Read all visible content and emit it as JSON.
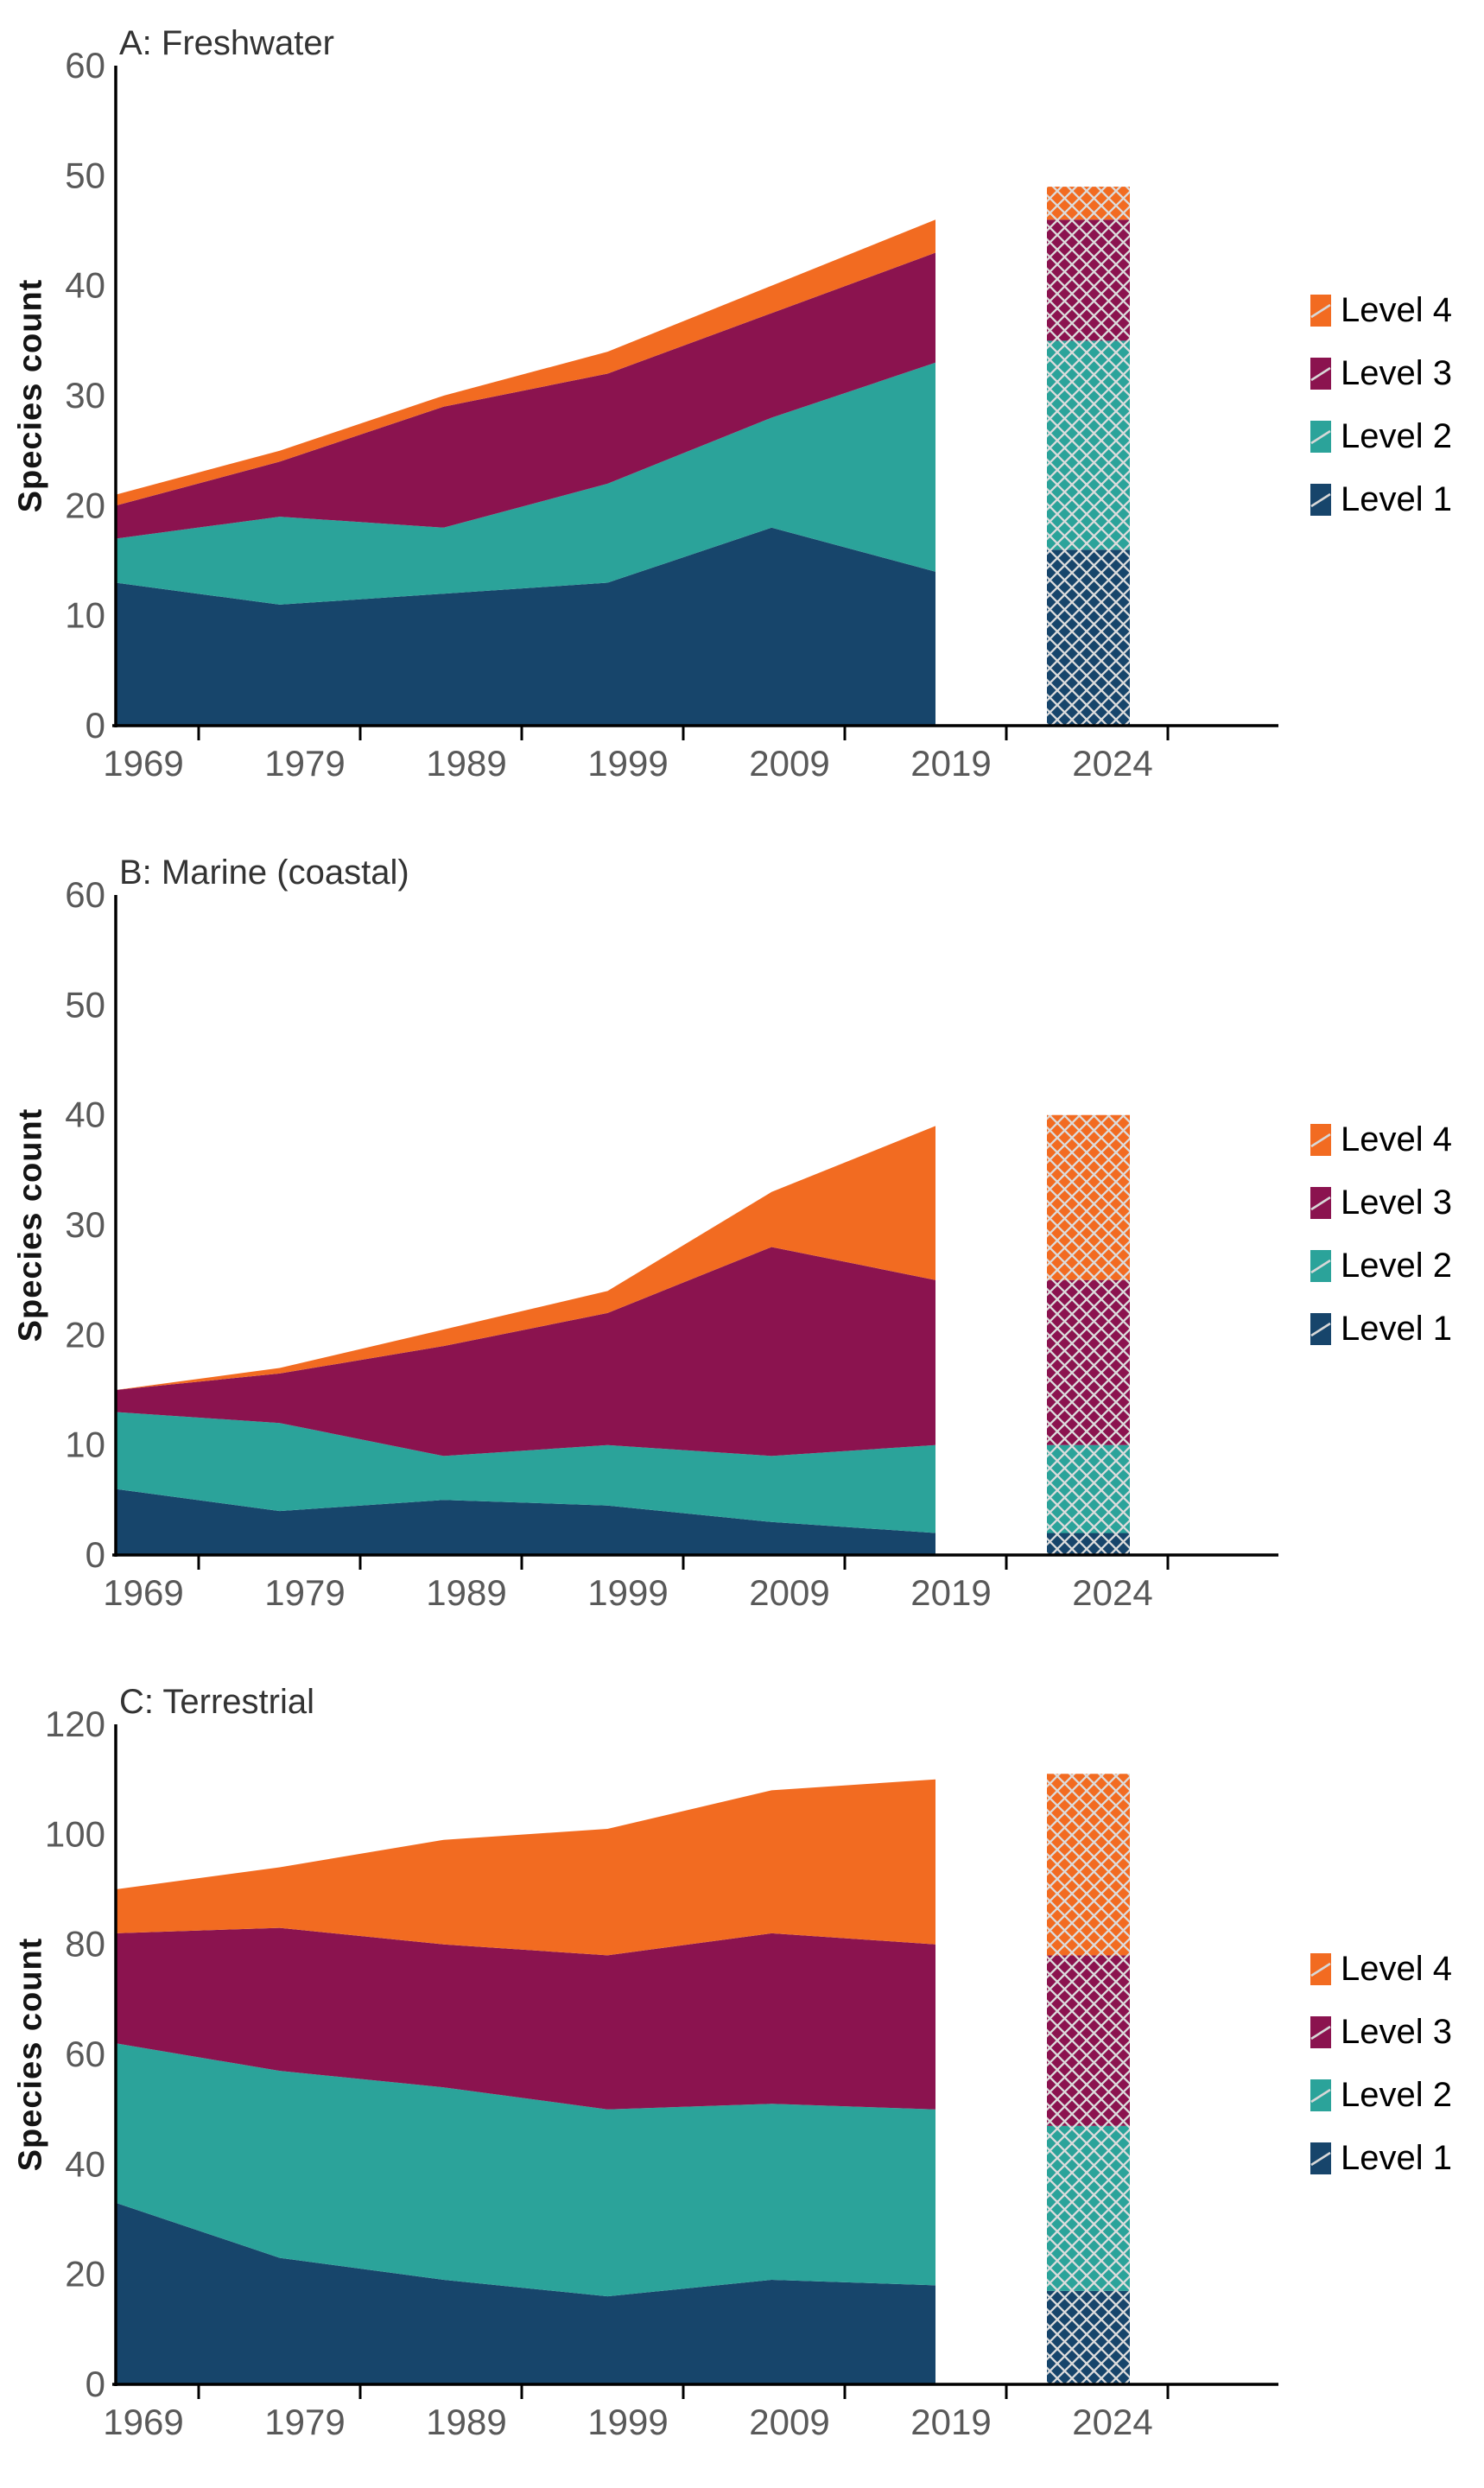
{
  "figure": {
    "background": "#ffffff"
  },
  "colors": {
    "level1": "#17456B",
    "level2": "#2BA39A",
    "level3": "#8B134F",
    "level4": "#F26B21",
    "hatch_line": "#DCDCDC",
    "axis": "#000000",
    "tick_label": "#595959",
    "title_text": "#333333",
    "ylabel_text": "#141414",
    "legend_text": "#000000"
  },
  "legend": {
    "position": "right",
    "items": [
      {
        "label": "Level 4",
        "color_key": "level4"
      },
      {
        "label": "Level 3",
        "color_key": "level3"
      },
      {
        "label": "Level 2",
        "color_key": "level2"
      },
      {
        "label": "Level 1",
        "color_key": "level1"
      }
    ]
  },
  "chart_data": [
    {
      "type": "area",
      "title": "A: Freshwater",
      "ylabel": "Species count",
      "ylim": [
        0,
        60
      ],
      "yticks": [
        0,
        10,
        20,
        30,
        40,
        50,
        60
      ],
      "xtick_labels": [
        "1969",
        "1979",
        "1989",
        "1999",
        "2009",
        "2019",
        "2024"
      ],
      "x": [
        1967,
        1977,
        1987,
        1997,
        2007,
        2017
      ],
      "grid": false,
      "series": [
        {
          "name": "Level 1",
          "color_key": "level1",
          "values": [
            13,
            11,
            12,
            13,
            18,
            14
          ]
        },
        {
          "name": "Level 2",
          "color_key": "level2",
          "values": [
            4,
            8,
            6,
            9,
            10,
            19
          ]
        },
        {
          "name": "Level 3",
          "color_key": "level3",
          "values": [
            3,
            5,
            11,
            10,
            9.5,
            10
          ]
        },
        {
          "name": "Level 4",
          "color_key": "level4",
          "values": [
            1,
            1,
            1,
            2,
            2.5,
            3
          ]
        }
      ],
      "projected_bar": {
        "label": "2024",
        "hatched": true,
        "segments": [
          16,
          19,
          11,
          3
        ],
        "total": 49
      }
    },
    {
      "type": "area",
      "title": "B: Marine (coastal)",
      "ylabel": "Species count",
      "ylim": [
        0,
        60
      ],
      "yticks": [
        0,
        10,
        20,
        30,
        40,
        50,
        60
      ],
      "xtick_labels": [
        "1969",
        "1979",
        "1989",
        "1999",
        "2009",
        "2019",
        "2024"
      ],
      "x": [
        1967,
        1977,
        1987,
        1997,
        2007,
        2017
      ],
      "grid": false,
      "series": [
        {
          "name": "Level 1",
          "color_key": "level1",
          "values": [
            6,
            4,
            5,
            4.5,
            3,
            2
          ]
        },
        {
          "name": "Level 2",
          "color_key": "level2",
          "values": [
            7,
            8,
            4,
            5.5,
            6,
            8
          ]
        },
        {
          "name": "Level 3",
          "color_key": "level3",
          "values": [
            2,
            4.5,
            10,
            12,
            19,
            15
          ]
        },
        {
          "name": "Level 4",
          "color_key": "level4",
          "values": [
            0,
            0.5,
            1.5,
            2,
            5,
            14
          ]
        }
      ],
      "projected_bar": {
        "label": "2024",
        "hatched": true,
        "segments": [
          2,
          8,
          15,
          15
        ],
        "total": 40
      }
    },
    {
      "type": "area",
      "title": "C: Terrestrial",
      "ylabel": "Species count",
      "ylim": [
        0,
        120
      ],
      "yticks": [
        0,
        20,
        40,
        60,
        80,
        100,
        120
      ],
      "xtick_labels": [
        "1969",
        "1979",
        "1989",
        "1999",
        "2009",
        "2019",
        "2024"
      ],
      "x": [
        1967,
        1977,
        1987,
        1997,
        2007,
        2017
      ],
      "grid": false,
      "series": [
        {
          "name": "Level 1",
          "color_key": "level1",
          "values": [
            33,
            23,
            19,
            16,
            19,
            18
          ]
        },
        {
          "name": "Level 2",
          "color_key": "level2",
          "values": [
            29,
            34,
            35,
            34,
            32,
            32
          ]
        },
        {
          "name": "Level 3",
          "color_key": "level3",
          "values": [
            20,
            26,
            26,
            28,
            31,
            30
          ]
        },
        {
          "name": "Level 4",
          "color_key": "level4",
          "values": [
            8,
            11,
            19,
            23,
            26,
            30
          ]
        }
      ],
      "projected_bar": {
        "label": "2024",
        "hatched": true,
        "segments": [
          17,
          30,
          31,
          33
        ],
        "total": 111
      }
    }
  ]
}
